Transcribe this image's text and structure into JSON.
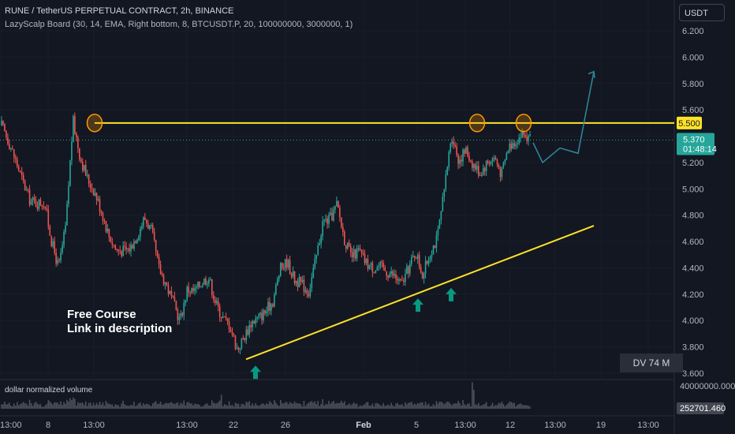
{
  "header": {
    "title": "RUNE / TetherUS PERPETUAL CONTRACT, 2h, BINANCE",
    "indicator": "LazyScalp Board (30, 14, EMA, Right bottom, 8, BTCUSDT.P, 20, 100000000, 3000000, 1)"
  },
  "currency_button": "USDT",
  "dv_badge": "DV 74 M",
  "annotation": {
    "line1": "Free Course",
    "line2": "Link in description"
  },
  "volume_pane": {
    "title": "dollar normalized volume",
    "scale_top": "40000000.000",
    "current": "252701.460"
  },
  "colors": {
    "up": "#26a69a",
    "down": "#ef5350",
    "resistance": "#ffe227",
    "trendline": "#ffe227",
    "projection": "#2f8a9b",
    "arrow": "#089981"
  },
  "chart_data": {
    "type": "candlestick",
    "symbol": "RUNE / TetherUS PERPETUAL CONTRACT",
    "timeframe": "2h",
    "y_ticks": [
      "6.200",
      "6.000",
      "5.800",
      "5.600",
      "5.400",
      "5.200",
      "5.000",
      "4.800",
      "4.600",
      "4.400",
      "4.200",
      "4.000",
      "3.800",
      "3.600"
    ],
    "ylim": [
      3.58,
      6.28
    ],
    "x_ticks": [
      "13:00",
      "8",
      "13:00",
      "13:00",
      "22",
      "26",
      "Feb",
      "5",
      "13:00",
      "12",
      "13:00",
      "19",
      "13:00"
    ],
    "resistance_level": 5.5,
    "resistance_label": "5.500",
    "last_price": "5.370",
    "countdown": "01:48:14",
    "trendline": {
      "from": 3.73,
      "to": 4.72
    },
    "projection_path": [
      5.35,
      5.2,
      5.31,
      5.27,
      5.89
    ],
    "price_path": [
      5.48,
      5.36,
      5.21,
      5.05,
      4.91,
      4.89,
      4.9,
      4.6,
      4.4,
      4.72,
      5.52,
      5.24,
      5.08,
      4.98,
      4.83,
      4.65,
      4.54,
      4.53,
      4.55,
      4.65,
      4.78,
      4.68,
      4.4,
      4.28,
      4.14,
      4.0,
      4.24,
      4.22,
      4.29,
      4.33,
      4.13,
      4.02,
      3.96,
      3.78,
      3.88,
      3.99,
      4.02,
      4.07,
      4.15,
      4.39,
      4.45,
      4.31,
      4.28,
      4.22,
      4.46,
      4.75,
      4.77,
      4.88,
      4.62,
      4.48,
      4.53,
      4.44,
      4.4,
      4.41,
      4.37,
      4.34,
      4.27,
      4.4,
      4.52,
      4.34,
      4.52,
      4.62,
      4.98,
      5.42,
      5.22,
      5.29,
      5.19,
      5.12,
      5.2,
      5.24,
      5.11,
      5.32,
      5.37,
      5.42,
      5.37
    ],
    "ellipse_levels": [
      5.5,
      5.5,
      5.5
    ],
    "arrow_levels": [
      3.73,
      4.24,
      4.32
    ]
  }
}
